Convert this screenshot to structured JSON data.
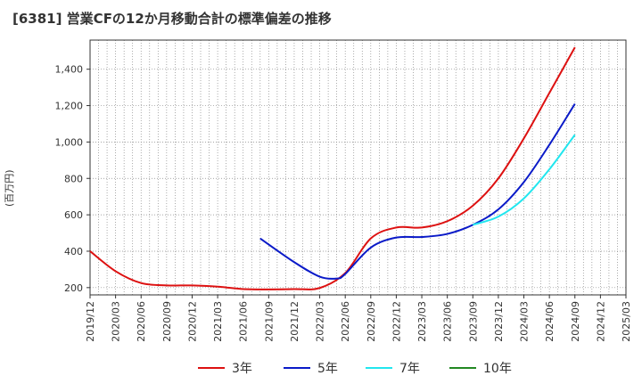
{
  "title": "[6381]  営業CFの12か月移動合計の標準偏差の推移",
  "chart_data": {
    "type": "line",
    "title": "[6381]  営業CFの12か月移動合計の標準偏差の推移",
    "ylabel": "(百万円)",
    "xlabel": "",
    "ylim": [
      160,
      1560
    ],
    "yticks": [
      200,
      400,
      600,
      800,
      1000,
      1200,
      1400
    ],
    "ytick_labels": [
      "200",
      "400",
      "600",
      "800",
      "1,000",
      "1,200",
      "1,400"
    ],
    "x_categories": [
      "2019/12",
      "2020/03",
      "2020/06",
      "2020/09",
      "2020/12",
      "2021/03",
      "2021/06",
      "2021/09",
      "2021/12",
      "2022/03",
      "2022/06",
      "2022/09",
      "2022/12",
      "2023/03",
      "2023/06",
      "2023/09",
      "2023/12",
      "2024/03",
      "2024/06",
      "2024/09",
      "2024/12",
      "2025/03"
    ],
    "grid": true,
    "legend_position": "bottom",
    "series": [
      {
        "name": "3年",
        "color": "#dd1111",
        "points": [
          [
            "2019/12",
            400
          ],
          [
            "2020/03",
            290
          ],
          [
            "2020/06",
            225
          ],
          [
            "2020/09",
            212
          ],
          [
            "2020/12",
            212
          ],
          [
            "2021/03",
            205
          ],
          [
            "2021/06",
            192
          ],
          [
            "2021/09",
            190
          ],
          [
            "2021/12",
            192
          ],
          [
            "2022/03",
            198
          ],
          [
            "2022/06",
            280
          ],
          [
            "2022/09",
            470
          ],
          [
            "2022/12",
            530
          ],
          [
            "2023/03",
            530
          ],
          [
            "2023/06",
            565
          ],
          [
            "2023/09",
            650
          ],
          [
            "2023/12",
            800
          ],
          [
            "2024/03",
            1020
          ],
          [
            "2024/06",
            1270
          ],
          [
            "2024/09",
            1520
          ]
        ]
      },
      {
        "name": "5年",
        "color": "#0a1ac8",
        "points": [
          [
            "2021/08",
            470
          ],
          [
            "2021/12",
            340
          ],
          [
            "2022/03",
            260
          ],
          [
            "2022/05",
            250
          ],
          [
            "2022/06",
            275
          ],
          [
            "2022/09",
            420
          ],
          [
            "2022/12",
            475
          ],
          [
            "2023/03",
            478
          ],
          [
            "2023/06",
            495
          ],
          [
            "2023/09",
            545
          ],
          [
            "2023/12",
            630
          ],
          [
            "2024/03",
            780
          ],
          [
            "2024/06",
            985
          ],
          [
            "2024/09",
            1210
          ]
        ]
      },
      {
        "name": "7年",
        "color": "#22e6ee",
        "points": [
          [
            "2023/09",
            545
          ],
          [
            "2023/12",
            590
          ],
          [
            "2024/03",
            690
          ],
          [
            "2024/06",
            850
          ],
          [
            "2024/09",
            1040
          ]
        ]
      },
      {
        "name": "10年",
        "color": "#228822",
        "points": []
      }
    ]
  }
}
